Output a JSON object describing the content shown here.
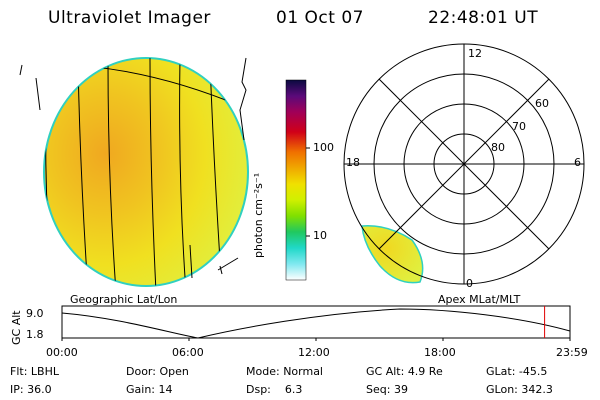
{
  "header": {
    "instrument": "Ultraviolet Imager",
    "date": "01 Oct 07",
    "time": "22:48:01 UT"
  },
  "colorbar": {
    "label": "photon cm⁻²s⁻¹",
    "ticks": [
      "100",
      "10"
    ],
    "scale": "log",
    "colors": [
      "#0a0a40",
      "#5a0a7a",
      "#a00058",
      "#d00018",
      "#f07000",
      "#f0a800",
      "#f0e000",
      "#d0f000",
      "#80e000",
      "#20c860",
      "#20d8c8",
      "#80e8f0",
      "#ffffff"
    ]
  },
  "polar_plot": {
    "time_labels": {
      "top": "12",
      "left": "18",
      "right": "6",
      "bottom": "0"
    },
    "lat_labels": [
      "60",
      "70",
      "80"
    ]
  },
  "left_panel": {
    "caption": "Geographic Lat/Lon"
  },
  "right_panel": {
    "caption": "Apex MLat/MLT"
  },
  "timeline": {
    "axis_label": "GC Alt",
    "y_ticks": [
      "9.0",
      "1.8"
    ],
    "x_ticks": [
      "00:00",
      "06:00",
      "12:00",
      "18:00",
      "23:59"
    ],
    "current_marker_hours": 22.8
  },
  "info": {
    "row1": [
      {
        "key": "Flt:",
        "value": "LBHL"
      },
      {
        "key": "Door:",
        "value": "Open"
      },
      {
        "key": "Mode:",
        "value": "Normal"
      },
      {
        "key": "GC Alt:",
        "value": "4.9 Re"
      },
      {
        "key": "GLat:",
        "value": "-45.5"
      }
    ],
    "row2": [
      {
        "key": "IP:",
        "value": "36.0"
      },
      {
        "key": "Gain:",
        "value": "14"
      },
      {
        "key": "Dsp:",
        "value": "6.3"
      },
      {
        "key": "Seq:",
        "value": "39"
      },
      {
        "key": "GLon:",
        "value": "342.3"
      }
    ]
  }
}
